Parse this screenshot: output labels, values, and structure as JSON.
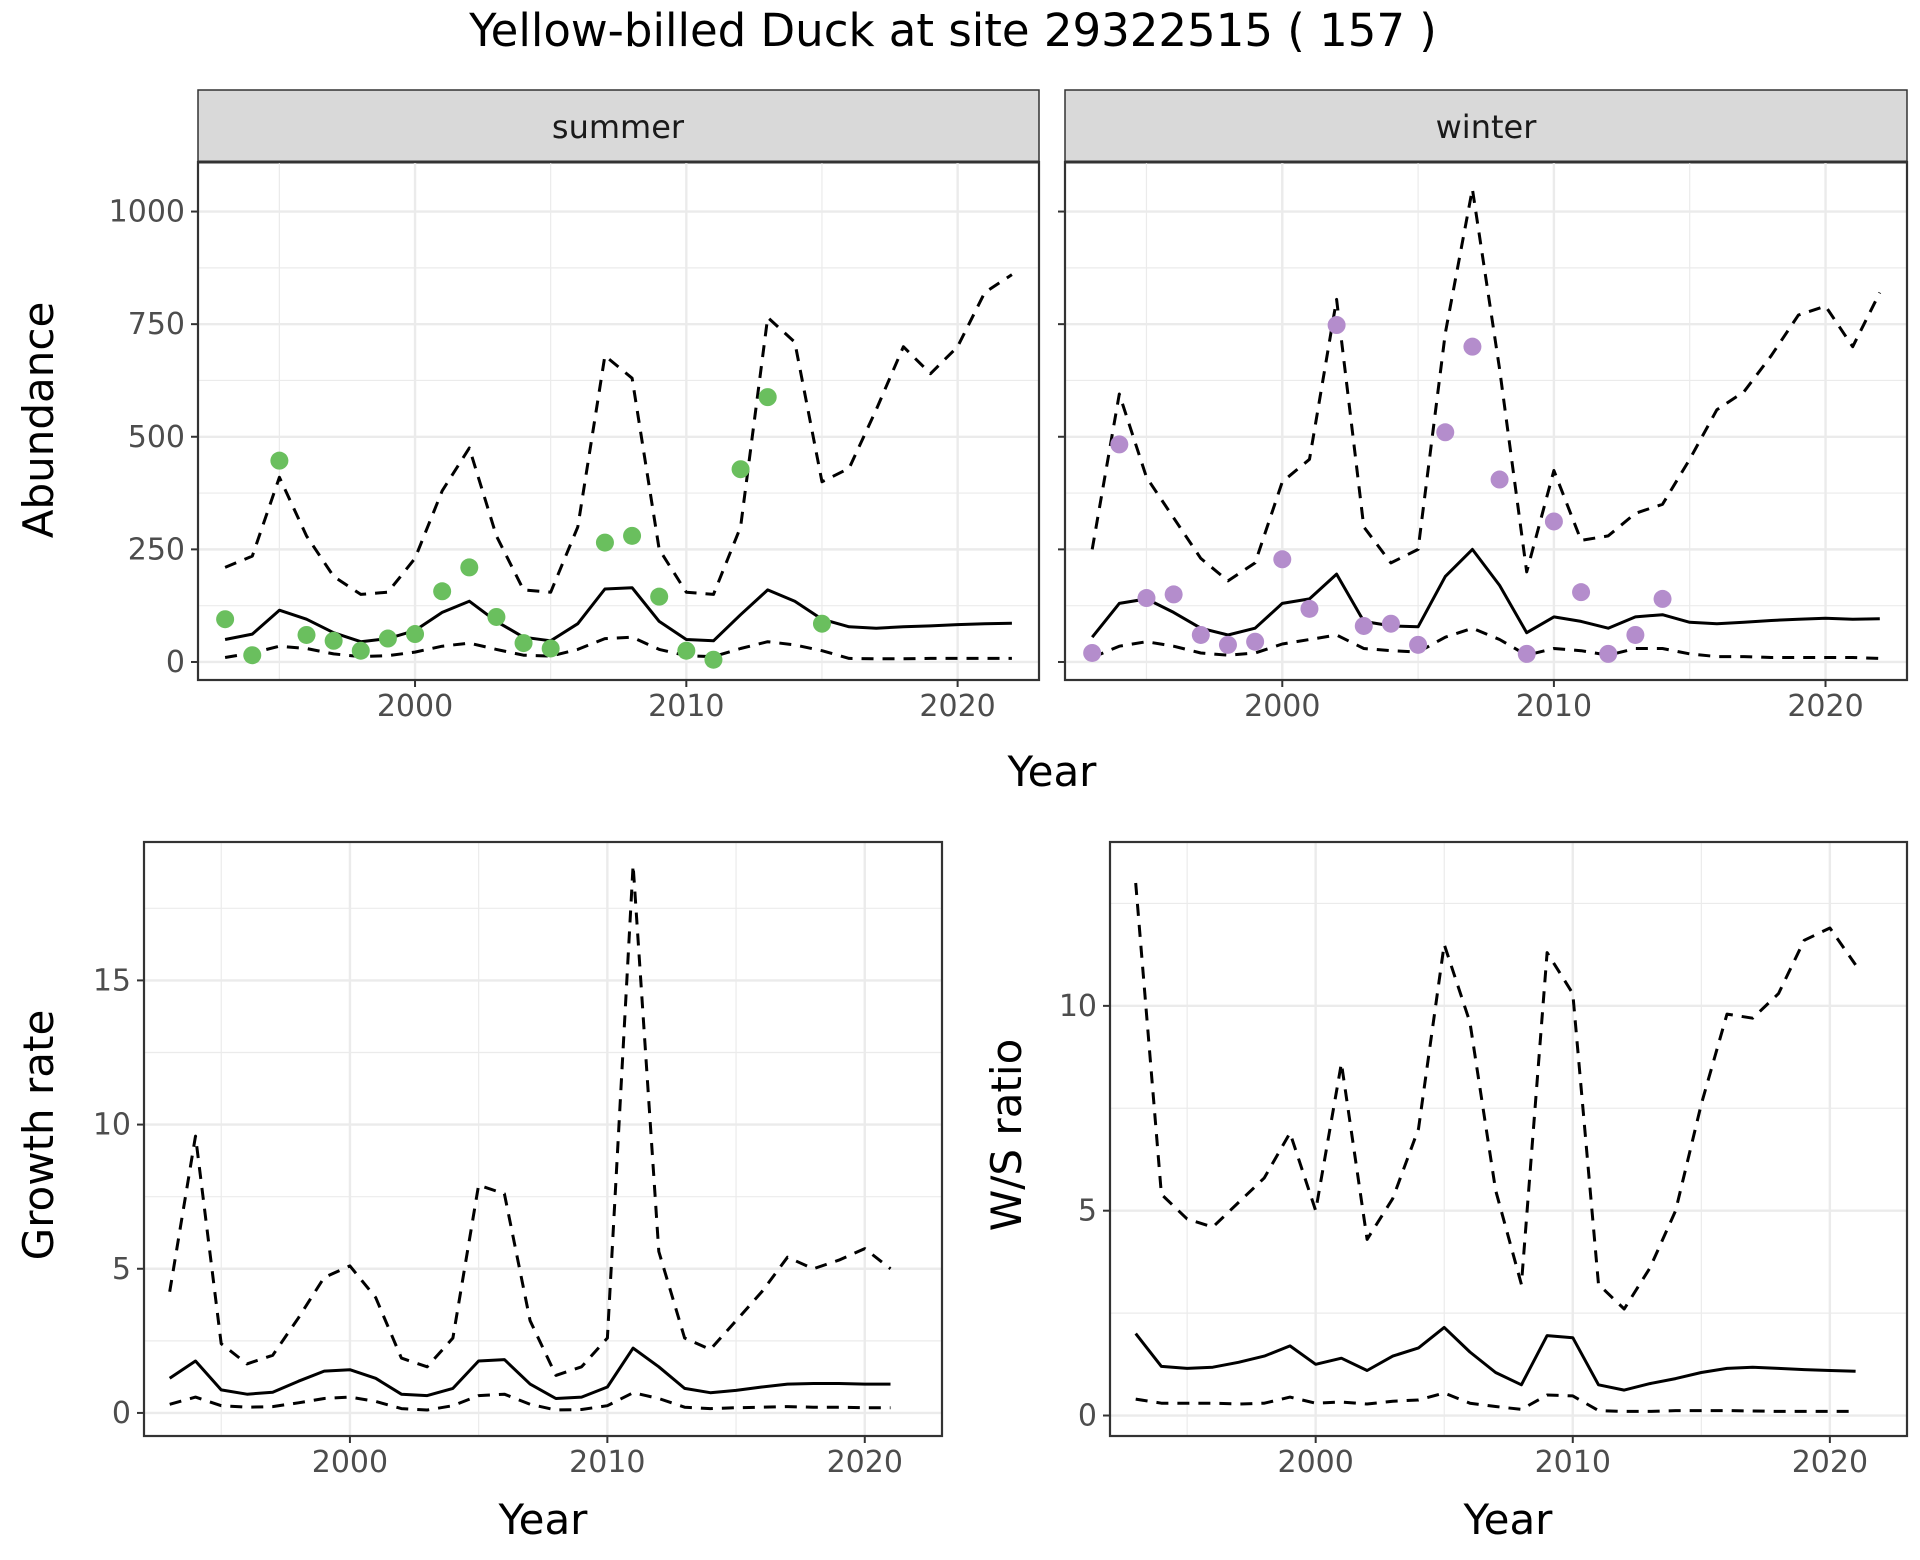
{
  "title": "Yellow-billed Duck at site 29322515 ( 157 )",
  "chart_data": [
    {
      "id": "abundance_summer",
      "type": "line",
      "facet": "summer",
      "xlabel": "Year",
      "ylabel": "Abundance",
      "xlim": [
        1992,
        2023
      ],
      "ylim": [
        -40,
        1110
      ],
      "x_ticks": [
        2000,
        2010,
        2020
      ],
      "y_ticks": [
        0,
        250,
        500,
        750,
        1000
      ],
      "point_color": "#6abf5e",
      "series": [
        {
          "role": "mean",
          "style": "solid",
          "x": [
            1993,
            1994,
            1995,
            1996,
            1997,
            1998,
            1999,
            2000,
            2001,
            2002,
            2003,
            2004,
            2005,
            2006,
            2007,
            2008,
            2009,
            2010,
            2011,
            2012,
            2013,
            2014,
            2015,
            2016,
            2017,
            2018,
            2019,
            2020,
            2021,
            2022
          ],
          "y": [
            50,
            62,
            115,
            95,
            65,
            45,
            52,
            70,
            110,
            135,
            90,
            55,
            47,
            85,
            162,
            165,
            90,
            50,
            47,
            105,
            160,
            135,
            95,
            78,
            75,
            78,
            80,
            83,
            85,
            86
          ]
        },
        {
          "role": "upper",
          "style": "dashed",
          "x": [
            1993,
            1994,
            1995,
            1996,
            1997,
            1998,
            1999,
            2000,
            2001,
            2002,
            2003,
            2004,
            2005,
            2006,
            2007,
            2008,
            2009,
            2010,
            2011,
            2012,
            2013,
            2014,
            2015,
            2016,
            2017,
            2018,
            2019,
            2020,
            2021,
            2022
          ],
          "y": [
            210,
            235,
            410,
            280,
            190,
            150,
            155,
            230,
            380,
            475,
            280,
            160,
            155,
            300,
            680,
            630,
            250,
            155,
            150,
            300,
            765,
            710,
            400,
            430,
            560,
            700,
            640,
            700,
            820,
            860
          ]
        },
        {
          "role": "lower",
          "style": "dashed",
          "x": [
            1993,
            1994,
            1995,
            1996,
            1997,
            1998,
            1999,
            2000,
            2001,
            2002,
            2003,
            2004,
            2005,
            2006,
            2007,
            2008,
            2009,
            2010,
            2011,
            2012,
            2013,
            2014,
            2015,
            2016,
            2017,
            2018,
            2019,
            2020,
            2021,
            2022
          ],
          "y": [
            10,
            20,
            35,
            30,
            18,
            12,
            14,
            22,
            35,
            42,
            28,
            15,
            13,
            28,
            52,
            55,
            28,
            14,
            12,
            30,
            45,
            38,
            25,
            8,
            7,
            7,
            8,
            8,
            8,
            8
          ]
        }
      ],
      "points": {
        "x": [
          1993,
          1994,
          1995,
          1996,
          1997,
          1998,
          1999,
          2000,
          2001,
          2002,
          2003,
          2004,
          2005,
          2007,
          2008,
          2009,
          2010,
          2011,
          2012,
          2013,
          2015
        ],
        "y": [
          95,
          15,
          447,
          60,
          47,
          25,
          52,
          62,
          157,
          210,
          100,
          42,
          30,
          265,
          280,
          145,
          25,
          5,
          428,
          588,
          85
        ]
      }
    },
    {
      "id": "abundance_winter",
      "type": "line",
      "facet": "winter",
      "xlabel": "Year",
      "ylabel": "Abundance",
      "xlim": [
        1992,
        2023
      ],
      "ylim": [
        -40,
        1110
      ],
      "x_ticks": [
        2000,
        2010,
        2020
      ],
      "y_ticks": [
        0,
        250,
        500,
        750,
        1000
      ],
      "point_color": "#b48dcc",
      "series": [
        {
          "role": "mean",
          "style": "solid",
          "x": [
            1993,
            1994,
            1995,
            1996,
            1997,
            1998,
            1999,
            2000,
            2001,
            2002,
            2003,
            2004,
            2005,
            2006,
            2007,
            2008,
            2009,
            2010,
            2011,
            2012,
            2013,
            2014,
            2015,
            2016,
            2017,
            2018,
            2019,
            2020,
            2021,
            2022
          ],
          "y": [
            55,
            130,
            140,
            110,
            75,
            60,
            75,
            130,
            140,
            195,
            90,
            80,
            78,
            190,
            250,
            170,
            65,
            100,
            90,
            75,
            100,
            105,
            88,
            85,
            88,
            92,
            95,
            97,
            95,
            96
          ]
        },
        {
          "role": "upper",
          "style": "dashed",
          "x": [
            1993,
            1994,
            1995,
            1996,
            1997,
            1998,
            1999,
            2000,
            2001,
            2002,
            2003,
            2004,
            2005,
            2006,
            2007,
            2008,
            2009,
            2010,
            2011,
            2012,
            2013,
            2014,
            2015,
            2016,
            2017,
            2018,
            2019,
            2020,
            2021,
            2022
          ],
          "y": [
            250,
            595,
            410,
            320,
            230,
            180,
            220,
            400,
            450,
            805,
            300,
            220,
            250,
            730,
            1050,
            650,
            200,
            425,
            270,
            280,
            330,
            350,
            450,
            560,
            600,
            680,
            770,
            790,
            700,
            820
          ]
        },
        {
          "role": "lower",
          "style": "dashed",
          "x": [
            1993,
            1994,
            1995,
            1996,
            1997,
            1998,
            1999,
            2000,
            2001,
            2002,
            2003,
            2004,
            2005,
            2006,
            2007,
            2008,
            2009,
            2010,
            2011,
            2012,
            2013,
            2014,
            2015,
            2016,
            2017,
            2018,
            2019,
            2020,
            2021,
            2022
          ],
          "y": [
            10,
            35,
            45,
            35,
            20,
            15,
            20,
            40,
            50,
            60,
            30,
            25,
            22,
            55,
            75,
            50,
            15,
            30,
            25,
            15,
            30,
            30,
            18,
            12,
            12,
            10,
            10,
            10,
            10,
            8
          ]
        }
      ],
      "points": {
        "x": [
          1993,
          1994,
          1995,
          1996,
          1997,
          1998,
          1999,
          2000,
          2001,
          2002,
          2003,
          2004,
          2005,
          2006,
          2007,
          2008,
          2009,
          2010,
          2011,
          2012,
          2013,
          2014
        ],
        "y": [
          20,
          483,
          142,
          150,
          60,
          38,
          45,
          228,
          118,
          748,
          80,
          85,
          38,
          510,
          700,
          405,
          18,
          312,
          155,
          18,
          60,
          140
        ]
      }
    },
    {
      "id": "growth_rate",
      "type": "line",
      "xlabel": "Year",
      "ylabel": "Growth rate",
      "xlim": [
        1992,
        2023
      ],
      "ylim": [
        -0.8,
        19.8
      ],
      "x_ticks": [
        2000,
        2010,
        2020
      ],
      "y_ticks": [
        0,
        5,
        10,
        15
      ],
      "series": [
        {
          "role": "mean",
          "style": "solid",
          "x": [
            1993,
            1994,
            1995,
            1996,
            1997,
            1998,
            1999,
            2000,
            2001,
            2002,
            2003,
            2004,
            2005,
            2006,
            2007,
            2008,
            2009,
            2010,
            2011,
            2012,
            2013,
            2014,
            2015,
            2016,
            2017,
            2018,
            2019,
            2020,
            2021
          ],
          "y": [
            1.2,
            1.8,
            0.8,
            0.65,
            0.72,
            1.1,
            1.45,
            1.5,
            1.2,
            0.65,
            0.6,
            0.85,
            1.8,
            1.85,
            1.0,
            0.5,
            0.55,
            0.9,
            2.25,
            1.6,
            0.85,
            0.7,
            0.78,
            0.9,
            1.0,
            1.02,
            1.02,
            1.0,
            1.0
          ]
        },
        {
          "role": "upper",
          "style": "dashed",
          "x": [
            1993,
            1994,
            1995,
            1996,
            1997,
            1998,
            1999,
            2000,
            2001,
            2002,
            2003,
            2004,
            2005,
            2006,
            2007,
            2008,
            2009,
            2010,
            2011,
            2012,
            2013,
            2014,
            2015,
            2016,
            2017,
            2018,
            2019,
            2020,
            2021
          ],
          "y": [
            4.2,
            9.6,
            2.4,
            1.7,
            2.0,
            3.3,
            4.7,
            5.1,
            4.0,
            1.9,
            1.6,
            2.6,
            7.9,
            7.6,
            3.2,
            1.3,
            1.6,
            2.6,
            19.0,
            5.6,
            2.6,
            2.2,
            3.2,
            4.2,
            5.4,
            5.0,
            5.3,
            5.7,
            5.0
          ]
        },
        {
          "role": "lower",
          "style": "dashed",
          "x": [
            1993,
            1994,
            1995,
            1996,
            1997,
            1998,
            1999,
            2000,
            2001,
            2002,
            2003,
            2004,
            2005,
            2006,
            2007,
            2008,
            2009,
            2010,
            2011,
            2012,
            2013,
            2014,
            2015,
            2016,
            2017,
            2018,
            2019,
            2020,
            2021
          ],
          "y": [
            0.3,
            0.55,
            0.25,
            0.2,
            0.22,
            0.35,
            0.5,
            0.55,
            0.4,
            0.15,
            0.1,
            0.25,
            0.6,
            0.65,
            0.3,
            0.1,
            0.12,
            0.25,
            0.7,
            0.5,
            0.2,
            0.15,
            0.18,
            0.2,
            0.22,
            0.2,
            0.2,
            0.18,
            0.18
          ]
        }
      ]
    },
    {
      "id": "ws_ratio",
      "type": "line",
      "xlabel": "Year",
      "ylabel": "W/S ratio",
      "xlim": [
        1992,
        2023
      ],
      "ylim": [
        -0.5,
        14.0
      ],
      "x_ticks": [
        2000,
        2010,
        2020
      ],
      "y_ticks": [
        0,
        5,
        10
      ],
      "series": [
        {
          "role": "mean",
          "style": "solid",
          "x": [
            1993,
            1994,
            1995,
            1996,
            1997,
            1998,
            1999,
            2000,
            2001,
            2002,
            2003,
            2004,
            2005,
            2006,
            2007,
            2008,
            2009,
            2010,
            2011,
            2012,
            2013,
            2014,
            2015,
            2016,
            2017,
            2018,
            2019,
            2020,
            2021
          ],
          "y": [
            2.0,
            1.2,
            1.15,
            1.18,
            1.3,
            1.45,
            1.7,
            1.25,
            1.4,
            1.1,
            1.45,
            1.65,
            2.15,
            1.55,
            1.05,
            0.75,
            1.95,
            1.9,
            0.75,
            0.62,
            0.78,
            0.9,
            1.05,
            1.15,
            1.18,
            1.15,
            1.12,
            1.1,
            1.08
          ]
        },
        {
          "role": "upper",
          "style": "dashed",
          "x": [
            1993,
            1994,
            1995,
            1996,
            1997,
            1998,
            1999,
            2000,
            2001,
            2002,
            2003,
            2004,
            2005,
            2006,
            2007,
            2008,
            2009,
            2010,
            2011,
            2012,
            2013,
            2014,
            2015,
            2016,
            2017,
            2018,
            2019,
            2020,
            2021
          ],
          "y": [
            13.0,
            5.4,
            4.8,
            4.6,
            5.2,
            5.8,
            6.9,
            5.0,
            8.6,
            4.3,
            5.3,
            7.0,
            11.5,
            9.6,
            5.5,
            3.2,
            11.3,
            10.3,
            3.2,
            2.6,
            3.6,
            5.0,
            7.6,
            9.8,
            9.7,
            10.3,
            11.6,
            11.9,
            11.0
          ]
        },
        {
          "role": "lower",
          "style": "dashed",
          "x": [
            1993,
            1994,
            1995,
            1996,
            1997,
            1998,
            1999,
            2000,
            2001,
            2002,
            2003,
            2004,
            2005,
            2006,
            2007,
            2008,
            2009,
            2010,
            2011,
            2012,
            2013,
            2014,
            2015,
            2016,
            2017,
            2018,
            2019,
            2020,
            2021
          ],
          "y": [
            0.4,
            0.3,
            0.3,
            0.3,
            0.28,
            0.3,
            0.45,
            0.3,
            0.33,
            0.28,
            0.35,
            0.38,
            0.55,
            0.3,
            0.22,
            0.15,
            0.5,
            0.48,
            0.12,
            0.1,
            0.1,
            0.12,
            0.12,
            0.12,
            0.11,
            0.1,
            0.1,
            0.1,
            0.1
          ]
        }
      ]
    }
  ]
}
